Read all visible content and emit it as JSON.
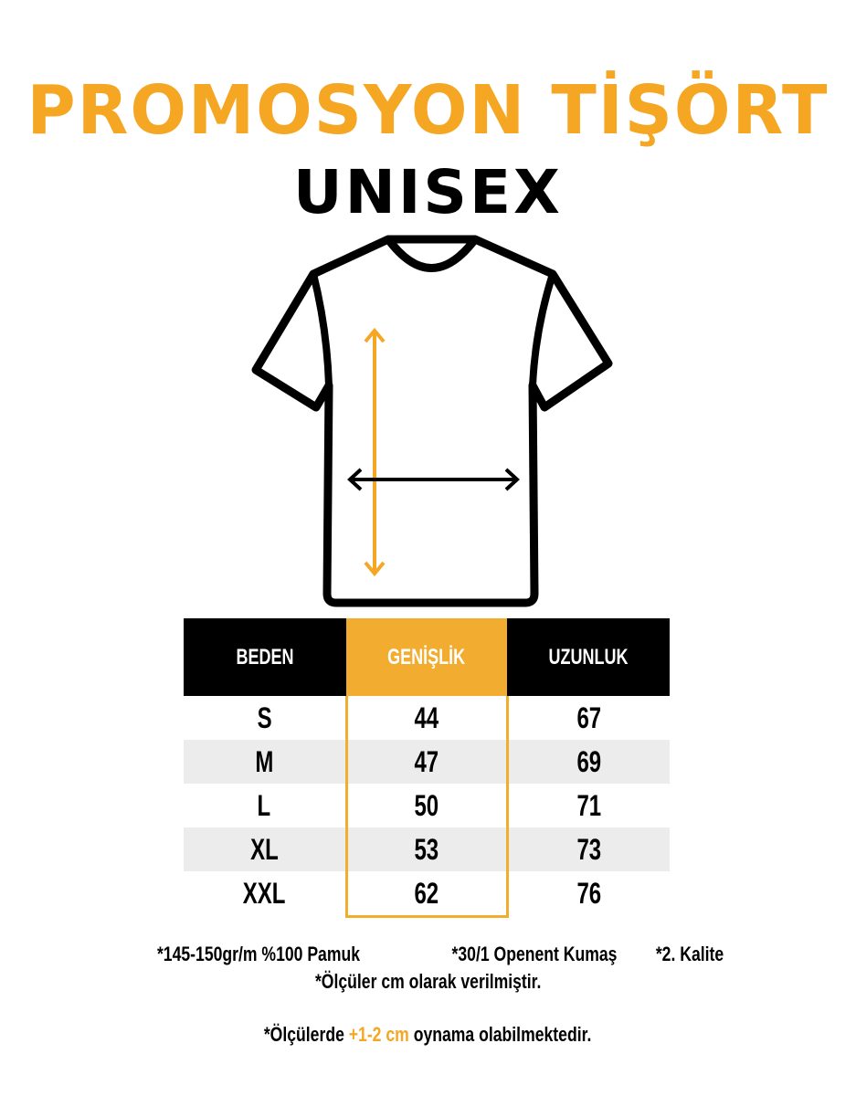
{
  "title": "PROMOSYON TİŞÖRT",
  "subtitle": "UNISEX",
  "colors": {
    "accent": "#f5a623",
    "header_bg": "#000000",
    "alt_row": "#ececec"
  },
  "table": {
    "headers": [
      "BEDEN",
      "GENİŞLİK",
      "UZUNLUK"
    ],
    "rows": [
      [
        "S",
        "44",
        "67"
      ],
      [
        "M",
        "47",
        "69"
      ],
      [
        "L",
        "50",
        "71"
      ],
      [
        "XL",
        "53",
        "73"
      ],
      [
        "XXL",
        "62",
        "76"
      ]
    ]
  },
  "notes": {
    "fabric": "*145-150gr/m %100 Pamuk",
    "yarn": "*30/1 Openent Kumaş",
    "quality": "*2. Kalite",
    "units": "*Ölçüler cm olarak verilmiştir.",
    "tolerance_prefix": "*Ölçülerde",
    "tolerance_value": "+1-2 cm",
    "tolerance_suffix": "oynama olabilmektedir."
  }
}
